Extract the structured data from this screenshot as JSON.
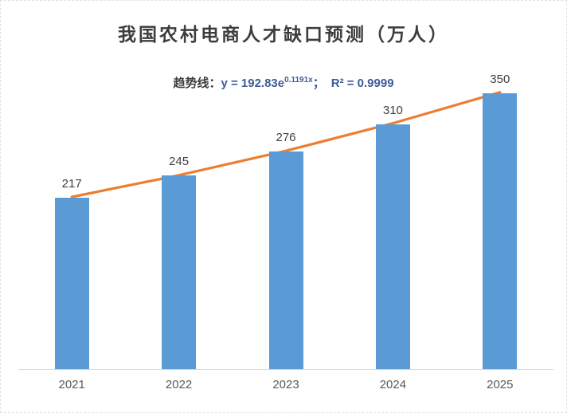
{
  "title": "我国农村电商人才缺口预测（万人）",
  "trendline_annotation": {
    "prefix": "趋势线：",
    "formula_base": "y = 192.83e",
    "formula_exponent": "0.1191x",
    "separator": "；",
    "r_squared": "R² = 0.9999"
  },
  "chart_data": {
    "type": "bar",
    "title": "我国农村电商人才缺口预测（万人）",
    "categories": [
      "2021",
      "2022",
      "2023",
      "2024",
      "2025"
    ],
    "values": [
      217,
      245,
      276,
      310,
      350
    ],
    "data_labels": [
      "217",
      "245",
      "276",
      "310",
      "350"
    ],
    "trend_values": [
      217.2,
      244.7,
      275.6,
      310.5,
      349.8
    ],
    "trendline_equation": "y = 192.83e^(0.1191x)",
    "r_squared": 0.9999,
    "xlabel": "",
    "ylabel": "",
    "ylim": [
      0,
      398
    ],
    "grid": false,
    "legend": false,
    "y_axis_visible": false,
    "colors": {
      "bar": "#5b9bd5",
      "trendline": "#ed7d31",
      "axis_line": "#d9d9d9",
      "title_text": "#3d3d3d",
      "equation_text": "#3e5c96",
      "data_label_text": "#404040",
      "x_label_text": "#595959"
    }
  }
}
